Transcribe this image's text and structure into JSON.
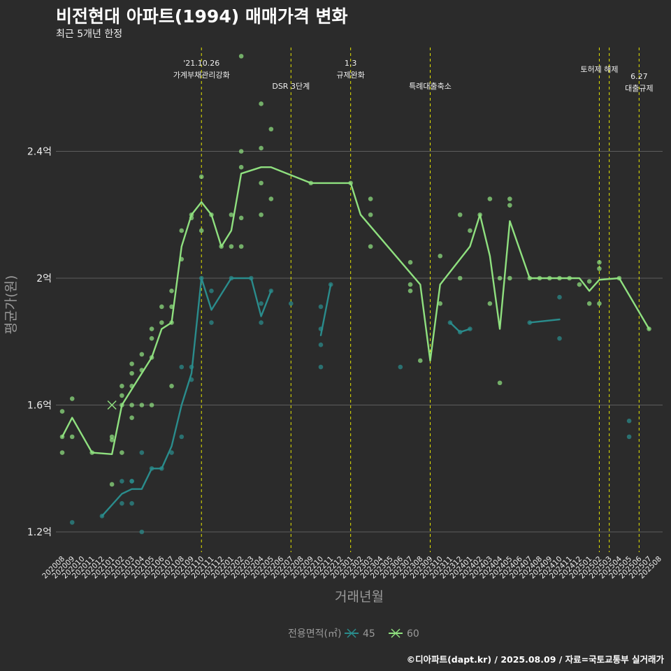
{
  "title": "비전현대 아파트(1994) 매매가격 변화",
  "subtitle": "최근 5개년 한정",
  "caption": "©디아파트(dapt.kr) / 2025.08.09 / 자료=국토교통부 실거래가",
  "colors": {
    "background": "#2b2b2b",
    "grid": "#5e5e5e",
    "event_line": "#e6e600",
    "series_45": "#2a8c8c",
    "series_60": "#8fe07f",
    "text": "#eeeeee",
    "axis_title": "#9a9a9a"
  },
  "chart_data": {
    "type": "line",
    "xlabel": "거래년월",
    "ylabel": "평균가(원)",
    "x": [
      "202008",
      "202009",
      "202010",
      "202011",
      "202012",
      "202101",
      "202102",
      "202103",
      "202104",
      "202105",
      "202106",
      "202107",
      "202108",
      "202109",
      "202110",
      "202111",
      "202112",
      "202201",
      "202202",
      "202203",
      "202204",
      "202205",
      "202206",
      "202207",
      "202208",
      "202209",
      "202210",
      "202211",
      "202212",
      "202301",
      "202302",
      "202303",
      "202304",
      "202305",
      "202306",
      "202307",
      "202308",
      "202309",
      "202310",
      "202311",
      "202312",
      "202401",
      "202402",
      "202403",
      "202404",
      "202405",
      "202406",
      "202407",
      "202408",
      "202409",
      "202410",
      "202411",
      "202412",
      "202501",
      "202502",
      "202503",
      "202504",
      "202505",
      "202506",
      "202507",
      "202508"
    ],
    "y_unit": "억",
    "yticks": [
      1.2,
      1.6,
      2.0,
      2.4
    ],
    "ytick_labels": [
      "1.2억",
      "1.6억",
      "2억",
      "2.4억"
    ],
    "ylim": [
      1.1,
      2.85
    ],
    "legend": {
      "title": "전용면적(㎡)",
      "position": "bottom",
      "items": [
        "45",
        "60"
      ]
    },
    "grid": true,
    "events": [
      {
        "x": "202110",
        "lines": [
          "'21.10.26",
          "가계부채관리강화"
        ],
        "row": 0
      },
      {
        "x": "202207",
        "lines": [
          "DSR 3단계"
        ],
        "row": 1
      },
      {
        "x": "202301",
        "lines": [
          "1.3",
          "규제완화"
        ],
        "row": 0
      },
      {
        "x": "202309",
        "lines": [
          "특례대출축소"
        ],
        "row": 1
      },
      {
        "x": "202502",
        "lines": [
          "토허제 해제"
        ],
        "row": 0
      },
      {
        "x": "202503",
        "lines": [],
        "row": 0
      },
      {
        "x": "202506",
        "lines": [
          "6.27",
          "대출규제"
        ],
        "row": 1
      }
    ],
    "series": [
      {
        "name": "45",
        "line": [
          [
            [
              "202012",
              1.25
            ],
            [
              "202102",
              1.32
            ],
            [
              "202103",
              1.335
            ],
            [
              "202104",
              1.335
            ],
            [
              "202105",
              1.4
            ],
            [
              "202106",
              1.4
            ],
            [
              "202107",
              1.47
            ],
            [
              "202108",
              1.6
            ],
            [
              "202109",
              1.7
            ],
            [
              "202110",
              2.0
            ],
            [
              "202111",
              1.9
            ],
            [
              "202201",
              2.0
            ],
            [
              "202203",
              2.0
            ],
            [
              "202204",
              1.88
            ],
            [
              "202205",
              1.96
            ]
          ],
          [
            [
              "202210",
              1.82
            ],
            [
              "202211",
              1.98
            ]
          ],
          [
            [
              "202311",
              1.86
            ],
            [
              "202312",
              1.83
            ],
            [
              "202401",
              1.84
            ]
          ],
          [
            [
              "202407",
              1.86
            ],
            [
              "202410",
              1.87
            ]
          ]
        ],
        "points": [
          [
            "202009",
            1.23
          ],
          [
            "202012",
            1.25
          ],
          [
            "202102",
            1.36
          ],
          [
            "202102",
            1.29
          ],
          [
            "202103",
            1.36
          ],
          [
            "202103",
            1.36
          ],
          [
            "202103",
            1.29
          ],
          [
            "202104",
            1.45
          ],
          [
            "202104",
            1.2
          ],
          [
            "202105",
            1.4
          ],
          [
            "202106",
            1.4
          ],
          [
            "202107",
            1.45
          ],
          [
            "202108",
            1.72
          ],
          [
            "202108",
            1.5
          ],
          [
            "202109",
            1.68
          ],
          [
            "202109",
            1.72
          ],
          [
            "202110",
            2.0
          ],
          [
            "202111",
            1.86
          ],
          [
            "202111",
            1.96
          ],
          [
            "202201",
            2.0
          ],
          [
            "202203",
            2.0
          ],
          [
            "202204",
            1.92
          ],
          [
            "202204",
            1.86
          ],
          [
            "202205",
            1.96
          ],
          [
            "202207",
            1.92
          ],
          [
            "202210",
            1.91
          ],
          [
            "202210",
            1.84
          ],
          [
            "202210",
            1.79
          ],
          [
            "202210",
            1.72
          ],
          [
            "202211",
            1.98
          ],
          [
            "202306",
            1.72
          ],
          [
            "202311",
            1.86
          ],
          [
            "202312",
            1.83
          ],
          [
            "202401",
            1.84
          ],
          [
            "202407",
            1.86
          ],
          [
            "202410",
            1.94
          ],
          [
            "202410",
            1.81
          ],
          [
            "202505",
            1.55
          ],
          [
            "202505",
            1.5
          ]
        ]
      },
      {
        "name": "60",
        "line": [
          [
            [
              "202008",
              1.5
            ],
            [
              "202009",
              1.56
            ],
            [
              "202011",
              1.45
            ],
            [
              "202101",
              1.445
            ],
            [
              "202102",
              1.6
            ],
            [
              "202103",
              1.65
            ],
            [
              "202104",
              1.7
            ],
            [
              "202105",
              1.75
            ],
            [
              "202106",
              1.84
            ],
            [
              "202107",
              1.86
            ],
            [
              "202108",
              2.1
            ],
            [
              "202109",
              2.2
            ],
            [
              "202110",
              2.24
            ],
            [
              "202111",
              2.2
            ],
            [
              "202112",
              2.1
            ],
            [
              "202201",
              2.15
            ],
            [
              "202202",
              2.33
            ],
            [
              "202204",
              2.35
            ],
            [
              "202205",
              2.35
            ],
            [
              "202209",
              2.3
            ],
            [
              "202301",
              2.3
            ],
            [
              "202302",
              2.2
            ],
            [
              "202308",
              1.98
            ],
            [
              "202309",
              1.74
            ],
            [
              "202310",
              1.98
            ],
            [
              "202401",
              2.1
            ],
            [
              "202402",
              2.2
            ],
            [
              "202403",
              2.07
            ],
            [
              "202404",
              1.84
            ],
            [
              "202405",
              2.18
            ],
            [
              "202407",
              2.0
            ],
            [
              "202412",
              2.0
            ],
            [
              "202501",
              1.96
            ],
            [
              "202502",
              1.995
            ],
            [
              "202504",
              2.0
            ],
            [
              "202507",
              1.84
            ]
          ]
        ],
        "points": [
          [
            "202008",
            1.58
          ],
          [
            "202008",
            1.5
          ],
          [
            "202008",
            1.45
          ],
          [
            "202009",
            1.62
          ],
          [
            "202009",
            1.5
          ],
          [
            "202011",
            1.45
          ],
          [
            "202101",
            1.5
          ],
          [
            "202101",
            1.49
          ],
          [
            "202101",
            1.35
          ],
          [
            "202102",
            1.66
          ],
          [
            "202102",
            1.63
          ],
          [
            "202102",
            1.6
          ],
          [
            "202102",
            1.45
          ],
          [
            "202103",
            1.73
          ],
          [
            "202103",
            1.7
          ],
          [
            "202103",
            1.66
          ],
          [
            "202103",
            1.6
          ],
          [
            "202103",
            1.56
          ],
          [
            "202104",
            1.76
          ],
          [
            "202104",
            1.71
          ],
          [
            "202104",
            1.6
          ],
          [
            "202105",
            1.84
          ],
          [
            "202105",
            1.81
          ],
          [
            "202105",
            1.75
          ],
          [
            "202105",
            1.6
          ],
          [
            "202106",
            1.91
          ],
          [
            "202106",
            1.86
          ],
          [
            "202107",
            1.96
          ],
          [
            "202107",
            1.91
          ],
          [
            "202107",
            1.86
          ],
          [
            "202107",
            1.66
          ],
          [
            "202108",
            2.15
          ],
          [
            "202108",
            2.06
          ],
          [
            "202109",
            2.2
          ],
          [
            "202109",
            2.19
          ],
          [
            "202110",
            2.32
          ],
          [
            "202110",
            2.15
          ],
          [
            "202111",
            2.2
          ],
          [
            "202112",
            2.1
          ],
          [
            "202201",
            2.2
          ],
          [
            "202201",
            2.1
          ],
          [
            "202202",
            2.7
          ],
          [
            "202202",
            2.4
          ],
          [
            "202202",
            2.35
          ],
          [
            "202202",
            2.19
          ],
          [
            "202202",
            2.1
          ],
          [
            "202204",
            2.55
          ],
          [
            "202204",
            2.41
          ],
          [
            "202204",
            2.3
          ],
          [
            "202204",
            2.2
          ],
          [
            "202205",
            2.47
          ],
          [
            "202205",
            2.25
          ],
          [
            "202209",
            2.3
          ],
          [
            "202301",
            2.3
          ],
          [
            "202303",
            2.25
          ],
          [
            "202303",
            2.2
          ],
          [
            "202303",
            2.1
          ],
          [
            "202307",
            2.05
          ],
          [
            "202307",
            1.98
          ],
          [
            "202307",
            1.96
          ],
          [
            "202308",
            1.74
          ],
          [
            "202310",
            2.07
          ],
          [
            "202310",
            1.92
          ],
          [
            "202312",
            2.2
          ],
          [
            "202312",
            2.0
          ],
          [
            "202401",
            2.15
          ],
          [
            "202402",
            2.2
          ],
          [
            "202403",
            2.25
          ],
          [
            "202403",
            1.92
          ],
          [
            "202404",
            2.0
          ],
          [
            "202404",
            1.67
          ],
          [
            "202405",
            2.25
          ],
          [
            "202405",
            2.23
          ],
          [
            "202405",
            2.0
          ],
          [
            "202407",
            2.0
          ],
          [
            "202408",
            2.0
          ],
          [
            "202409",
            2.0
          ],
          [
            "202410",
            2.0
          ],
          [
            "202411",
            2.0
          ],
          [
            "202412",
            1.98
          ],
          [
            "202501",
            1.99
          ],
          [
            "202501",
            1.92
          ],
          [
            "202502",
            2.05
          ],
          [
            "202502",
            2.03
          ],
          [
            "202502",
            1.92
          ],
          [
            "202504",
            2.0
          ],
          [
            "202507",
            1.84
          ]
        ],
        "marker_point": [
          "202101",
          1.6
        ]
      }
    ]
  }
}
